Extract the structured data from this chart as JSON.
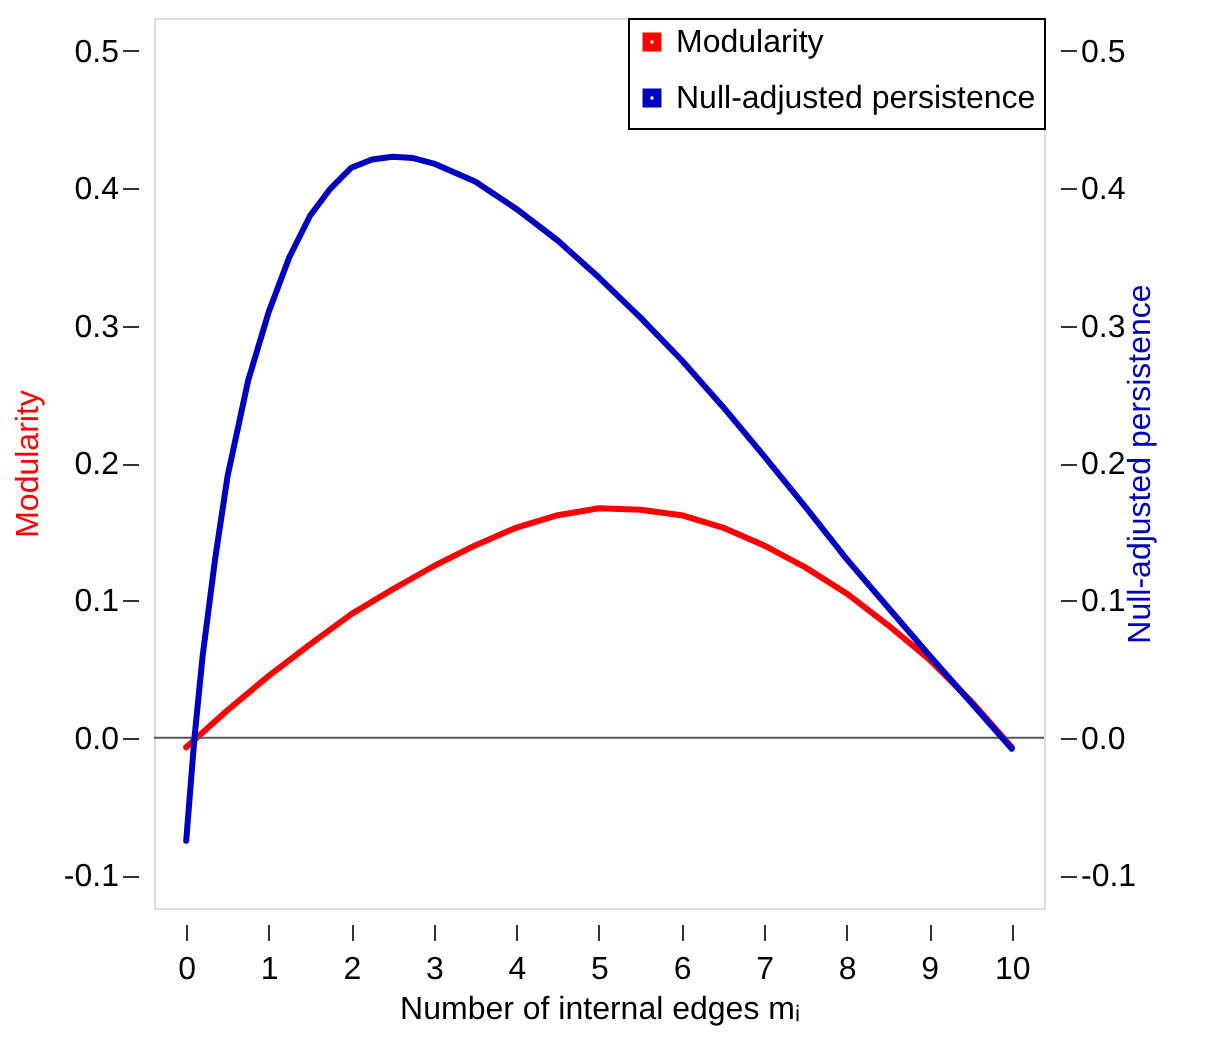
{
  "chart_data": {
    "type": "line",
    "xlabel": "Number of internal edges mᵢ",
    "ylabel": "Modularity",
    "y2label": "Null-adjusted persistence",
    "xlim": [
      -0.39,
      10.39
    ],
    "xticks": [
      0,
      1,
      2,
      3,
      4,
      5,
      6,
      7,
      8,
      9,
      10
    ],
    "ylim": [
      -0.124,
      0.524
    ],
    "yticks": [
      {
        "value": -0.1,
        "label": "-0.1"
      },
      {
        "value": 0,
        "label": "0.0"
      },
      0.1,
      0.2,
      0.3,
      0.4,
      0.5
    ],
    "y2lim": [
      -0.124,
      0.524
    ],
    "y2ticks": [
      {
        "value": -0.1,
        "label": "-0.1"
      },
      {
        "value": 0,
        "label": "0.0"
      },
      0.1,
      0.2,
      0.3,
      0.4,
      0.5
    ],
    "legend": "top right",
    "grid": false,
    "ref_lines": [
      {
        "axis": "y",
        "value": 0,
        "color": "#595959"
      }
    ],
    "series": [
      {
        "name": "Modularity",
        "color": "#ff0000",
        "x": [
          0,
          0.5,
          1,
          1.5,
          2,
          2.5,
          3,
          3.5,
          4,
          4.5,
          5,
          5.5,
          6,
          6.5,
          7,
          7.5,
          8,
          8.5,
          9,
          9.5,
          10
        ],
        "values": [
          -0.007,
          0.02,
          0.045,
          0.068,
          0.09,
          0.108,
          0.125,
          0.14,
          0.153,
          0.162,
          0.167,
          0.166,
          0.162,
          0.153,
          0.14,
          0.124,
          0.105,
          0.082,
          0.057,
          0.027,
          -0.007
        ]
      },
      {
        "name": "Null-adjusted persistence",
        "color": "#0000c0",
        "axis": "y2",
        "x": [
          0,
          0.1,
          0.2,
          0.35,
          0.5,
          0.75,
          1,
          1.25,
          1.5,
          1.75,
          2,
          2.25,
          2.5,
          2.75,
          3,
          3.5,
          4,
          4.5,
          5,
          5.5,
          6,
          6.5,
          7,
          7.5,
          8,
          8.5,
          9,
          9.5,
          10
        ],
        "values": [
          -0.075,
          0.0,
          0.06,
          0.13,
          0.19,
          0.26,
          0.31,
          0.35,
          0.38,
          0.4,
          0.415,
          0.421,
          0.423,
          0.422,
          0.418,
          0.405,
          0.385,
          0.362,
          0.335,
          0.306,
          0.275,
          0.241,
          0.205,
          0.168,
          0.13,
          0.095,
          0.06,
          0.026,
          -0.008
        ]
      }
    ]
  }
}
